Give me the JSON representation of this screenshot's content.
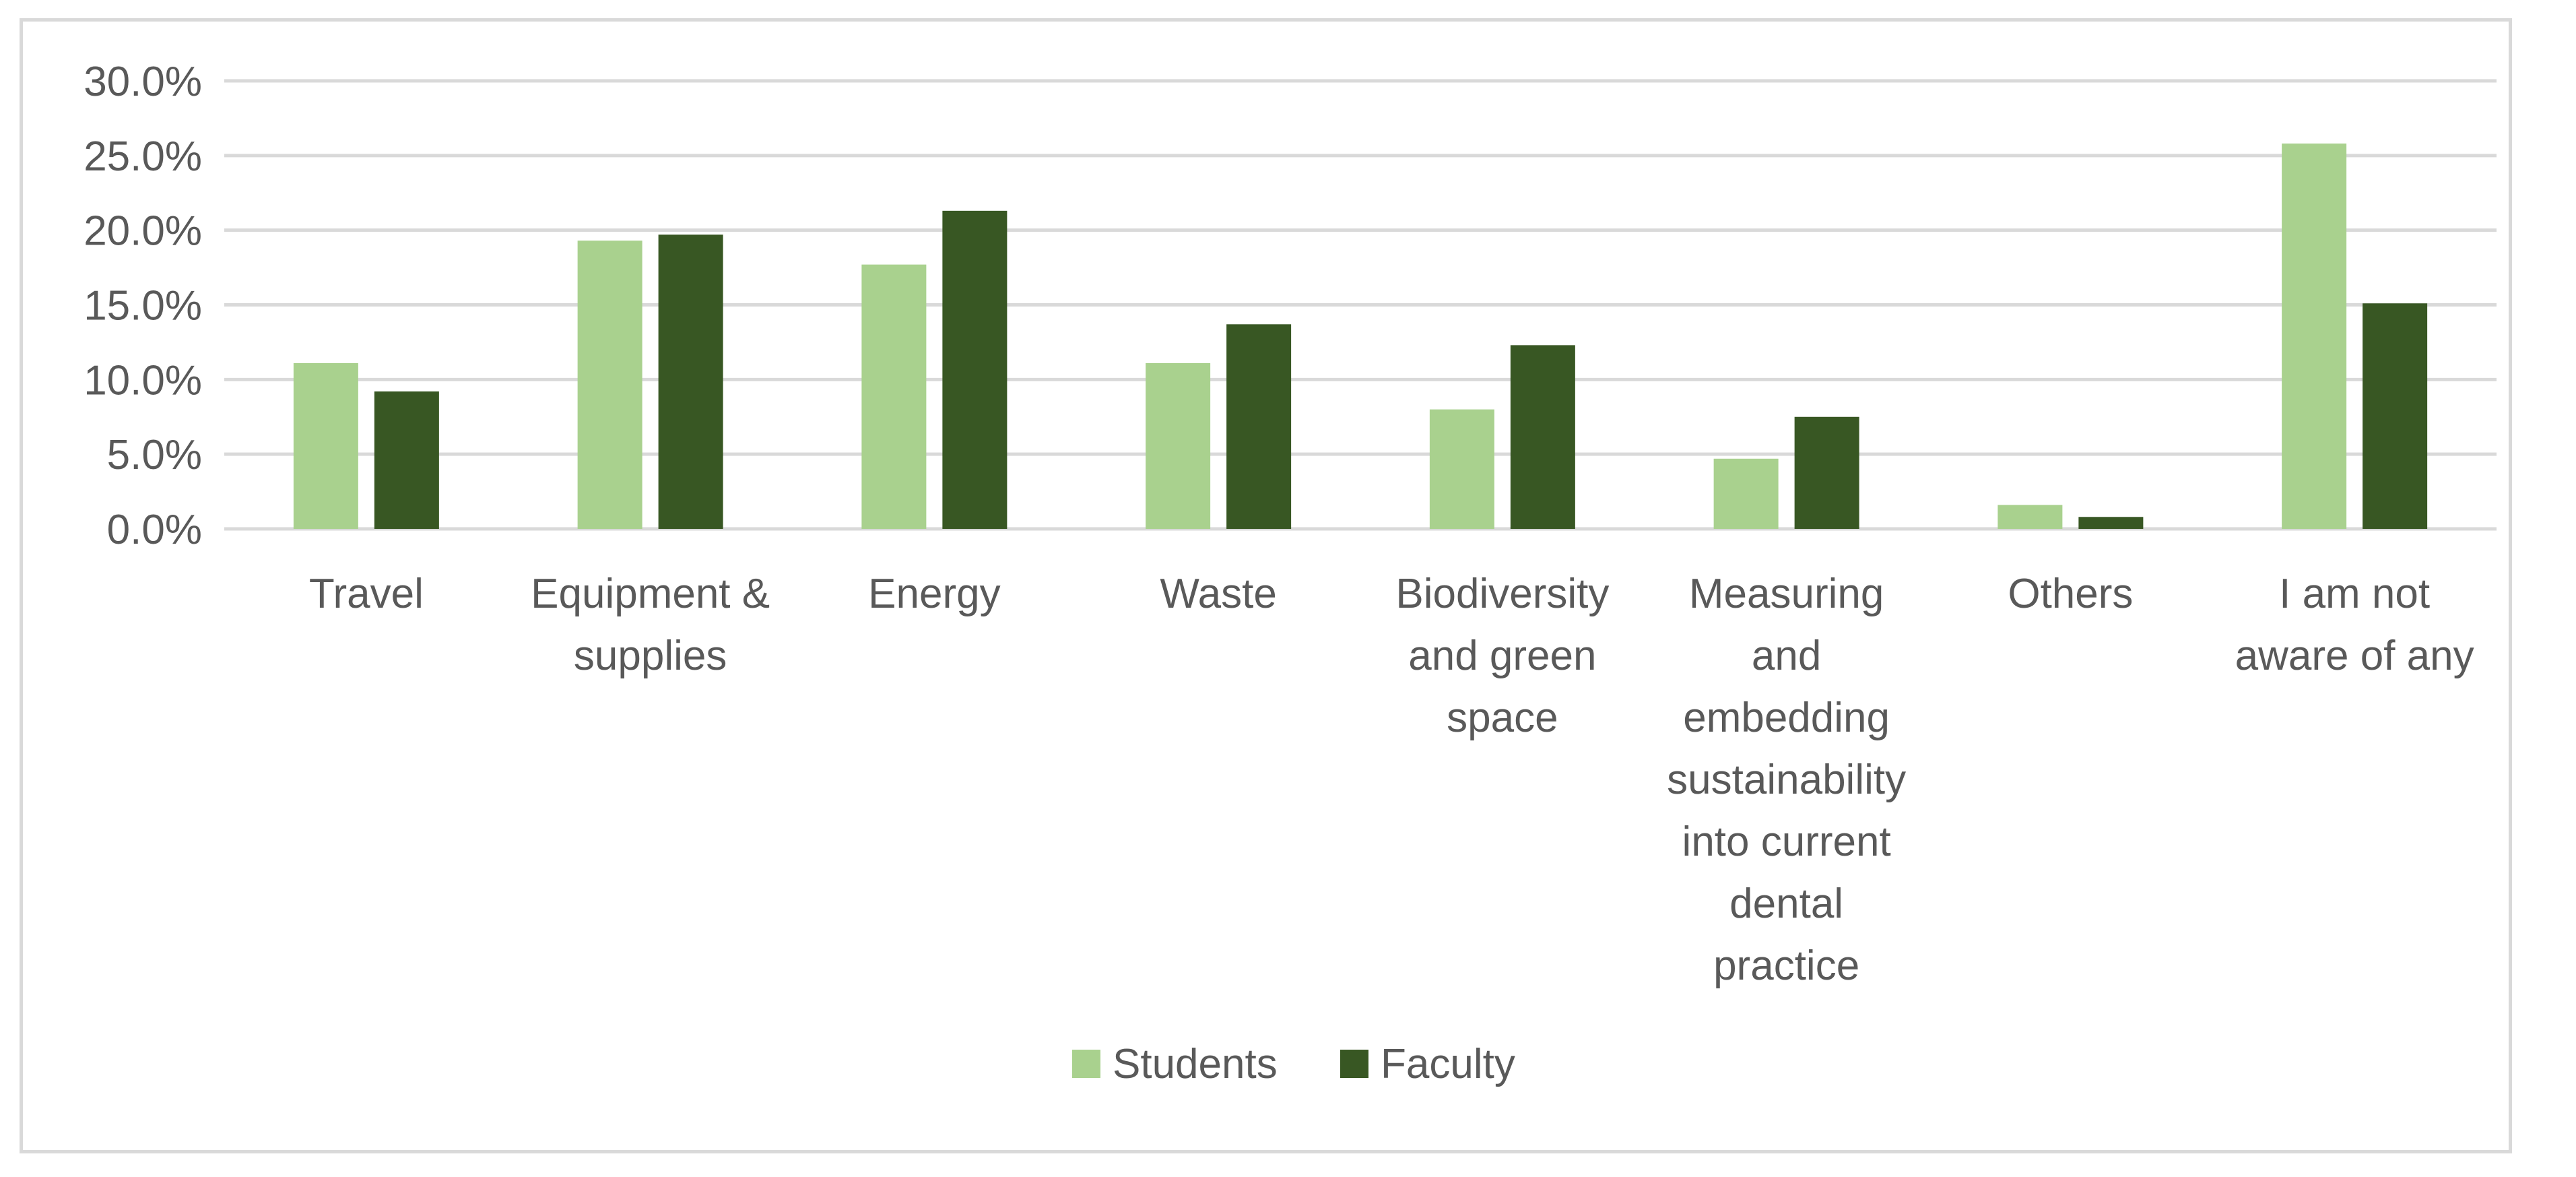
{
  "chart_data": {
    "type": "bar",
    "title": "",
    "xlabel": "",
    "ylabel": "",
    "ylim": [
      0,
      30
    ],
    "y_tick_format": "percent_1dp",
    "y_ticks": [
      "0.0%",
      "5.0%",
      "10.0%",
      "15.0%",
      "20.0%",
      "25.0%",
      "30.0%"
    ],
    "grid": true,
    "legend_position": "bottom",
    "categories": [
      [
        "Travel"
      ],
      [
        "Equipment &",
        "supplies"
      ],
      [
        "Energy"
      ],
      [
        "Waste"
      ],
      [
        "Biodiversity",
        "and green",
        "space"
      ],
      [
        "Measuring",
        "and",
        "embedding",
        "sustainability",
        "into current",
        "dental",
        "practice"
      ],
      [
        "Others"
      ],
      [
        "I am not",
        "aware of any"
      ]
    ],
    "series": [
      {
        "name": "Students",
        "color": "#a9d18e",
        "values": [
          11.1,
          19.3,
          17.7,
          11.1,
          8.0,
          4.7,
          1.6,
          25.8
        ]
      },
      {
        "name": "Faculty",
        "color": "#385723",
        "values": [
          9.2,
          19.7,
          21.3,
          13.7,
          12.3,
          7.5,
          0.8,
          15.1
        ]
      }
    ]
  }
}
